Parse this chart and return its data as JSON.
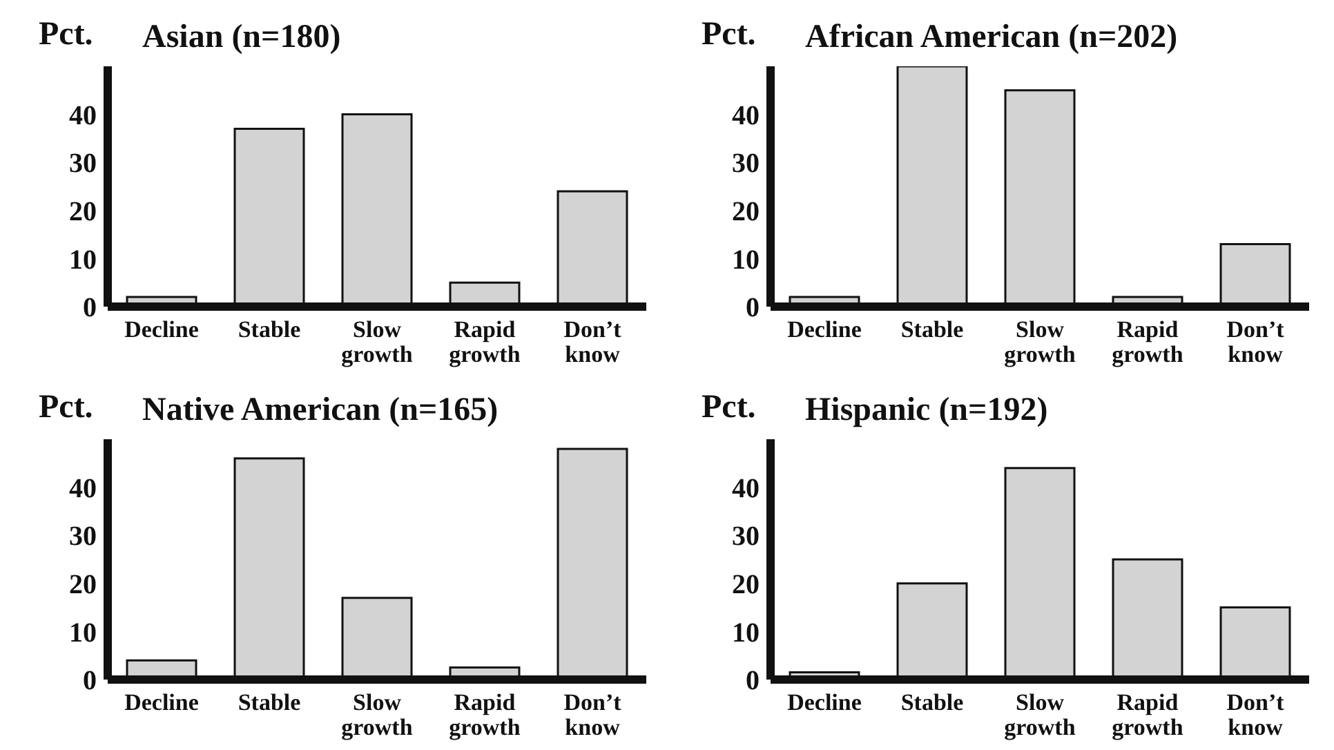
{
  "chart_data": [
    {
      "type": "bar",
      "title": "Asian (n=180)",
      "ylabel": "Pct.",
      "categories": [
        "Decline",
        "Stable",
        "Slow growth",
        "Rapid growth",
        "Don’t know"
      ],
      "values": [
        2,
        37,
        40,
        5,
        24
      ],
      "color": "#d3d3d3",
      "ylim": [
        0,
        50
      ],
      "yticks": [
        0,
        10,
        20,
        30,
        40
      ],
      "grid": false,
      "legend": false
    },
    {
      "type": "bar",
      "title": "African American (n=202)",
      "ylabel": "Pct.",
      "categories": [
        "Decline",
        "Stable",
        "Slow growth",
        "Rapid growth",
        "Don’t know"
      ],
      "values": [
        2,
        50,
        45,
        2,
        13
      ],
      "color": "#d3d3d3",
      "ylim": [
        0,
        50
      ],
      "yticks": [
        0,
        10,
        20,
        30,
        40
      ],
      "grid": false,
      "legend": false
    },
    {
      "type": "bar",
      "title": "Native American (n=165)",
      "ylabel": "Pct.",
      "categories": [
        "Decline",
        "Stable",
        "Slow growth",
        "Rapid growth",
        "Don’t know"
      ],
      "values": [
        4,
        46,
        17,
        2.5,
        48
      ],
      "color": "#d3d3d3",
      "ylim": [
        0,
        50
      ],
      "yticks": [
        0,
        10,
        20,
        30,
        40
      ],
      "grid": false,
      "legend": false
    },
    {
      "type": "bar",
      "title": "Hispanic (n=192)",
      "ylabel": "Pct.",
      "categories": [
        "Decline",
        "Stable",
        "Slow growth",
        "Rapid growth",
        "Don’t know"
      ],
      "values": [
        1.5,
        20,
        44,
        25,
        15
      ],
      "color": "#d3d3d3",
      "ylim": [
        0,
        50
      ],
      "yticks": [
        0,
        10,
        20,
        30,
        40
      ],
      "grid": false,
      "legend": false
    }
  ]
}
